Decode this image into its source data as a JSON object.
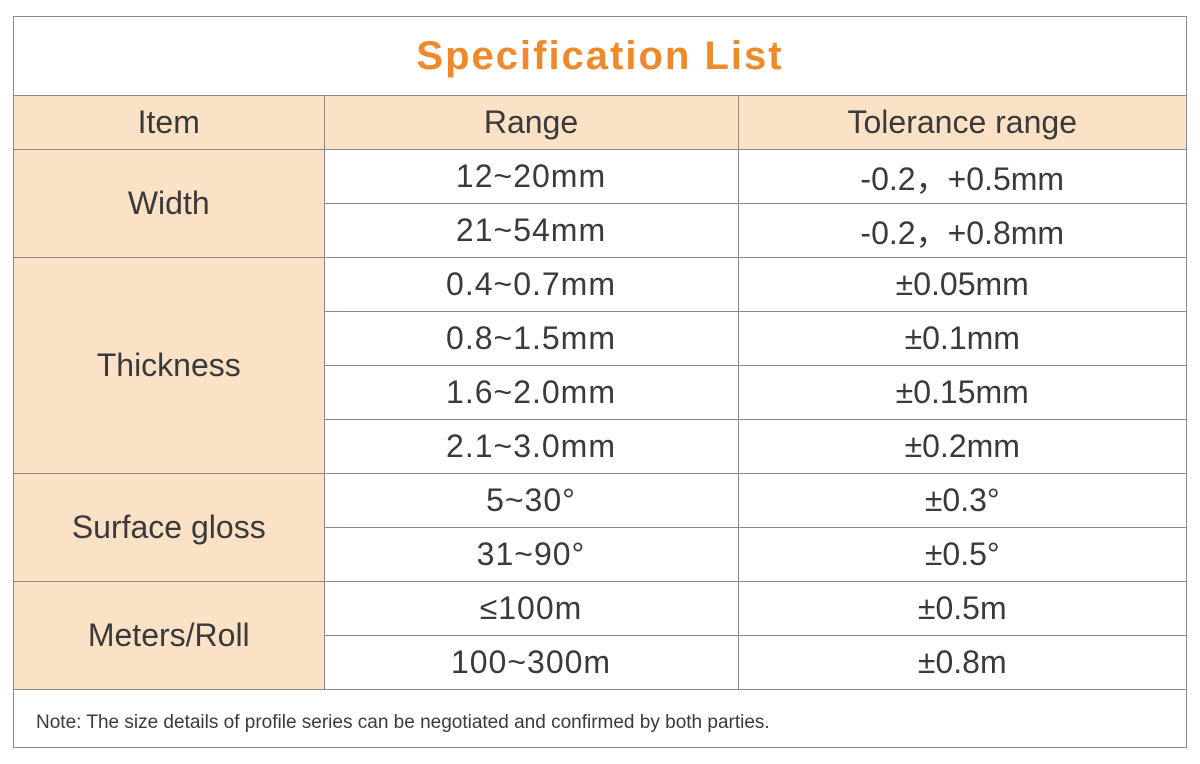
{
  "title": "Specification List",
  "headers": {
    "item": "Item",
    "range": "Range",
    "tolerance": "Tolerance range"
  },
  "groups": [
    {
      "item": "Width",
      "rows": [
        {
          "range": "12~20mm",
          "tolerance": "-0.2，+0.5mm"
        },
        {
          "range": "21~54mm",
          "tolerance": "-0.2，+0.8mm"
        }
      ]
    },
    {
      "item": "Thickness",
      "rows": [
        {
          "range": "0.4~0.7mm",
          "tolerance": "±0.05mm"
        },
        {
          "range": "0.8~1.5mm",
          "tolerance": "±0.1mm"
        },
        {
          "range": "1.6~2.0mm",
          "tolerance": "±0.15mm"
        },
        {
          "range": "2.1~3.0mm",
          "tolerance": "±0.2mm"
        }
      ]
    },
    {
      "item": "Surface gloss",
      "rows": [
        {
          "range": "5~30°",
          "tolerance": "±0.3°"
        },
        {
          "range": "31~90°",
          "tolerance": "±0.5°"
        }
      ]
    },
    {
      "item": "Meters/Roll",
      "rows": [
        {
          "range": "≤100m",
          "tolerance": "±0.5m"
        },
        {
          "range": "100~300m",
          "tolerance": "±0.8m"
        }
      ]
    }
  ],
  "note": "Note: The size details of profile series can be negotiated and confirmed by both parties.",
  "colors": {
    "title": "#ef8a2a",
    "header_bg": "#fbe2c6",
    "border": "#8a8a8a",
    "text": "#3a3a3a"
  }
}
